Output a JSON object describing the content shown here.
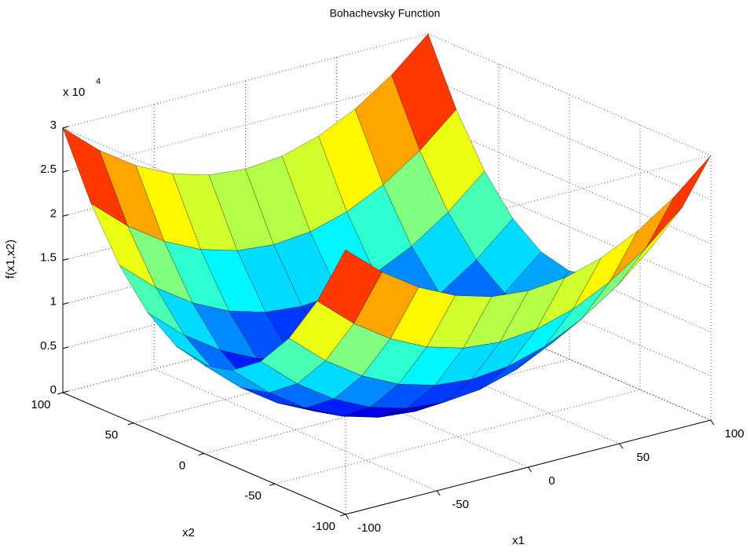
{
  "chart_data": {
    "type": "surface",
    "title": "Bohachevsky Function",
    "xlabel": "x1",
    "ylabel": "x2",
    "zlabel": "f(x1,x2)",
    "zscale_label": {
      "base": "x 10",
      "exponent": "4"
    },
    "colormap": "jet",
    "grid": true,
    "x": [
      -100,
      -80,
      -60,
      -40,
      -20,
      0,
      20,
      40,
      60,
      80,
      100
    ],
    "y": [
      -100,
      -80,
      -60,
      -40,
      -20,
      0,
      20,
      40,
      60,
      80,
      100
    ],
    "z": [
      [
        30000,
        26400,
        23600,
        21600,
        20400,
        20000,
        20400,
        21600,
        23600,
        26400,
        30000
      ],
      [
        22800,
        19200,
        16400,
        14400,
        13200,
        12800,
        13200,
        14400,
        16400,
        19200,
        22800
      ],
      [
        17200,
        13600,
        10800,
        8800,
        7600,
        7200,
        7600,
        8800,
        10800,
        13600,
        17200
      ],
      [
        13200,
        9600,
        6800,
        4800,
        3600,
        3200,
        3600,
        4800,
        6800,
        9600,
        13200
      ],
      [
        10800,
        7200,
        4400,
        2400,
        1200,
        800,
        1200,
        2400,
        4400,
        7200,
        10800
      ],
      [
        10000,
        6400,
        3600,
        1600,
        400,
        0,
        400,
        1600,
        3600,
        6400,
        10000
      ],
      [
        10800,
        7200,
        4400,
        2400,
        1200,
        800,
        1200,
        2400,
        4400,
        7200,
        10800
      ],
      [
        13200,
        9600,
        6800,
        4800,
        3600,
        3200,
        3600,
        4800,
        6800,
        9600,
        13200
      ],
      [
        17200,
        13600,
        10800,
        8800,
        7600,
        7200,
        7600,
        8800,
        10800,
        13600,
        17200
      ],
      [
        22800,
        19200,
        16400,
        14400,
        13200,
        12800,
        13200,
        14400,
        16400,
        19200,
        22800
      ],
      [
        30000,
        26400,
        23600,
        21600,
        20400,
        20000,
        20400,
        21600,
        23600,
        26400,
        30000
      ]
    ],
    "xlim": [
      -100,
      100
    ],
    "ylim": [
      -100,
      100
    ],
    "zlim": [
      0,
      30000
    ],
    "xticks": [
      -100,
      -50,
      0,
      50,
      100
    ],
    "yticks": [
      -100,
      -50,
      0,
      50,
      100
    ],
    "zticks": [
      {
        "value": 0,
        "label": "0"
      },
      {
        "value": 5000,
        "label": "0.5"
      },
      {
        "value": 10000,
        "label": "1"
      },
      {
        "value": 15000,
        "label": "1.5"
      },
      {
        "value": 20000,
        "label": "2"
      },
      {
        "value": 25000,
        "label": "2.5"
      },
      {
        "value": 30000,
        "label": "3"
      }
    ]
  }
}
